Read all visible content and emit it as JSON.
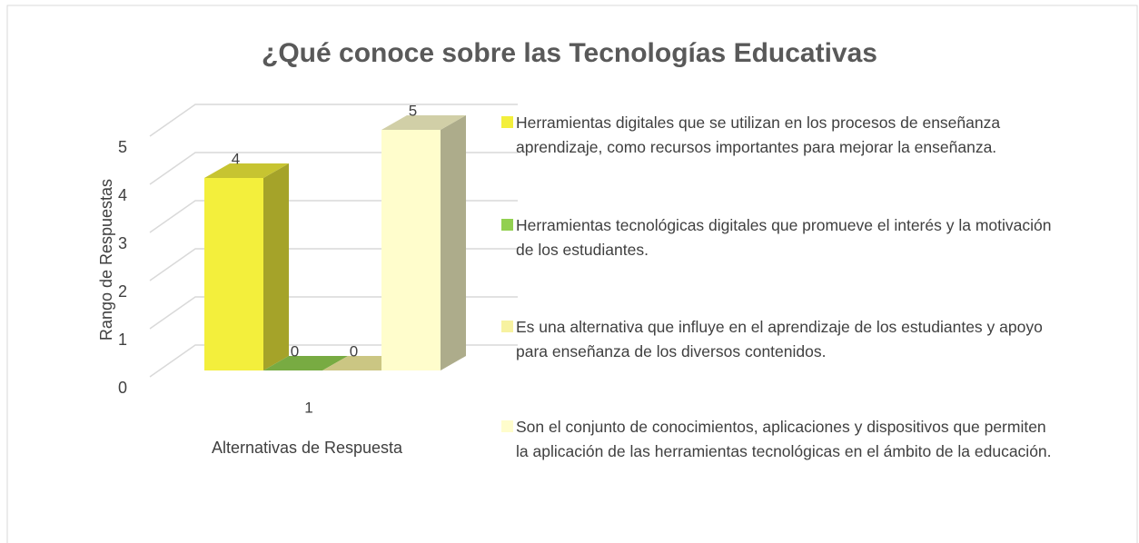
{
  "chart_data": {
    "type": "bar3d",
    "title": "¿Qué conoce sobre las Tecnologías Educativas",
    "xlabel": "Alternativas de Respuesta",
    "ylabel": "Rango de Respuestas",
    "categories": [
      "1"
    ],
    "series": [
      {
        "name": "Herramientas digitales que se utilizan en los procesos de enseñanza aprendizaje, como recursos importantes para mejorar la enseñanza.",
        "color": "#f3ef3c",
        "values": [
          4
        ]
      },
      {
        "name": "Herramientas tecnológicas digitales que promueve el interés y la motivación de los estudiantes.",
        "color": "#92d050",
        "values": [
          0
        ]
      },
      {
        "name": "Es una alternativa que influye en el aprendizaje de los estudiantes y apoyo para enseñanza de los diversos contenidos.",
        "color": "#f7f2a0",
        "values": [
          0
        ]
      },
      {
        "name": "Son el conjunto de conocimientos, aplicaciones y dispositivos que permiten la aplicación de las herramientas tecnológicas en el ámbito de la educación.",
        "color": "#fffdcc",
        "values": [
          5
        ]
      }
    ],
    "ylim": [
      0,
      5
    ],
    "yticks": [
      0,
      1,
      2,
      3,
      4,
      5
    ],
    "grid": true,
    "legend": "right"
  }
}
